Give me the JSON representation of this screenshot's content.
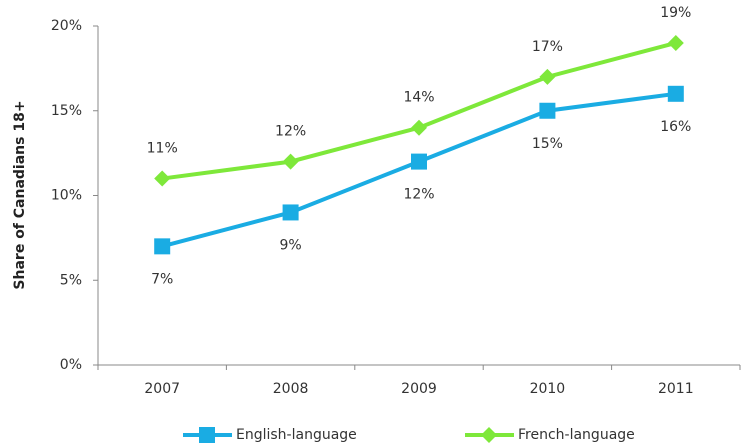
{
  "chart_data": {
    "type": "line",
    "y_label": "Share of Canadians 18+",
    "categories": [
      "2007",
      "2008",
      "2009",
      "2010",
      "2011"
    ],
    "series": [
      {
        "name": "English-language",
        "color": "#1aace3",
        "marker": "square",
        "values": [
          7,
          9,
          12,
          15,
          16
        ],
        "value_labels": [
          "7%",
          "9%",
          "12%",
          "15%",
          "16%"
        ]
      },
      {
        "name": "French-language",
        "color": "#7ee83a",
        "marker": "diamond",
        "values": [
          11,
          12,
          14,
          17,
          19
        ],
        "value_labels": [
          "11%",
          "12%",
          "14%",
          "17%",
          "19%"
        ]
      }
    ],
    "ylim": [
      0,
      20
    ],
    "yticks": [
      {
        "value": 0,
        "label": "0%"
      },
      {
        "value": 5,
        "label": "5%"
      },
      {
        "value": 10,
        "label": "10%"
      },
      {
        "value": 15,
        "label": "15%"
      },
      {
        "value": 20,
        "label": "20%"
      }
    ],
    "grid": false,
    "legend": "bottom"
  }
}
